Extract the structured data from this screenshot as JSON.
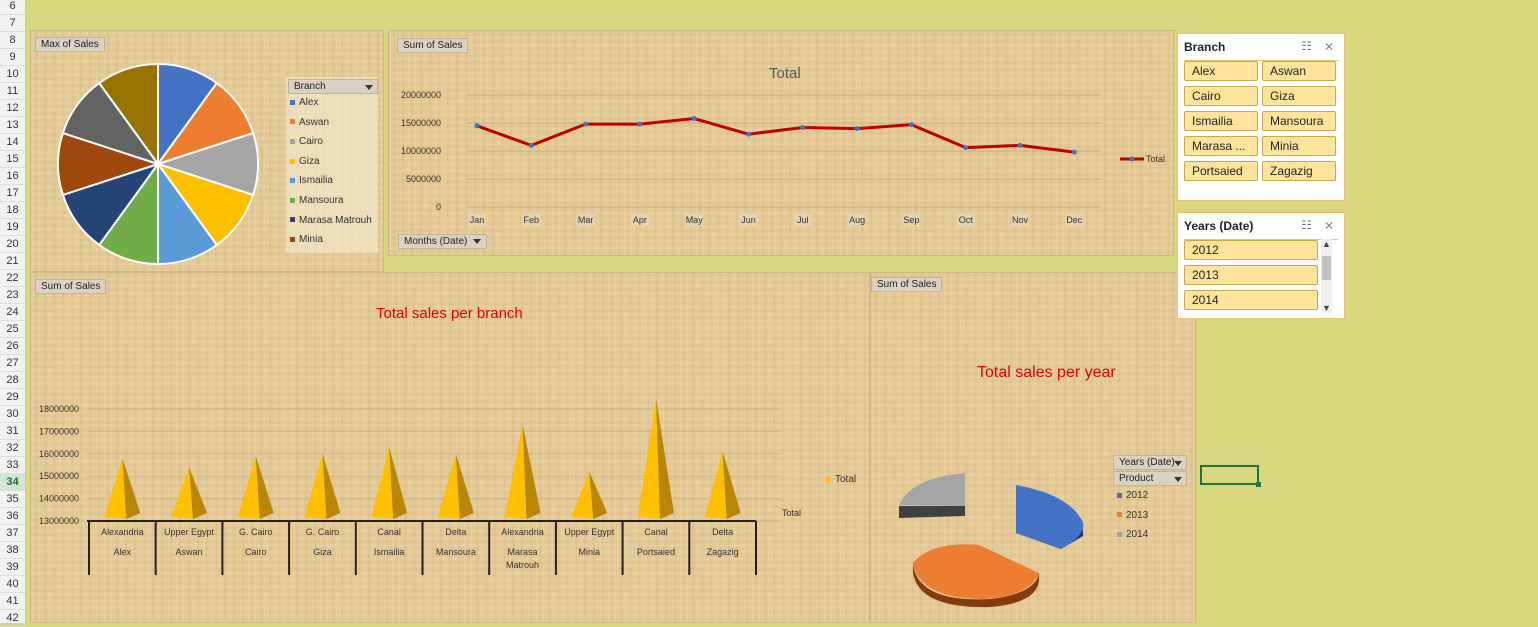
{
  "row_headers": [
    "6",
    "7",
    "8",
    "9",
    "10",
    "11",
    "12",
    "13",
    "14",
    "15",
    "16",
    "17",
    "18",
    "19",
    "20",
    "21",
    "22",
    "23",
    "24",
    "25",
    "26",
    "27",
    "28",
    "29",
    "30",
    "31",
    "32",
    "33",
    "34",
    "35",
    "36",
    "37",
    "38",
    "39",
    "40",
    "41",
    "42"
  ],
  "active_row": "34",
  "pie_panel": {
    "field_button": "Max of Sales",
    "legend_header": "Branch",
    "legend_items": [
      {
        "label": "Alex",
        "color": "#4472c4"
      },
      {
        "label": "Aswan",
        "color": "#ed7d31"
      },
      {
        "label": "Cairo",
        "color": "#a5a5a5"
      },
      {
        "label": "Giza",
        "color": "#ffc000"
      },
      {
        "label": "Ismailia",
        "color": "#5b9bd5"
      },
      {
        "label": "Mansoura",
        "color": "#70ad47"
      },
      {
        "label": "Marasa Matrouh",
        "color": "#264478"
      },
      {
        "label": "Minia",
        "color": "#9e480e"
      }
    ]
  },
  "line_panel": {
    "field_button": "Sum of Sales",
    "title": "Total",
    "axis_button": "Months (Date)",
    "legend_label": "Total"
  },
  "cone_panel": {
    "field_button": "Sum of Sales",
    "title": "Total sales per branch",
    "legend_label": "Total",
    "axis_caption": "Total",
    "regions": [
      "Alexandria",
      "Upper Egypt",
      "G. Cairo",
      "G. Cairo",
      "Canal",
      "Delta",
      "Alexandria",
      "Upper Egypt",
      "Canal",
      "Delta"
    ],
    "branches": [
      "Alex",
      "Aswan",
      "Cairo",
      "Giza",
      "Ismailia",
      "Mansoura",
      "Marasa Matrouh",
      "Minia",
      "Portsaied",
      "Zagazig"
    ]
  },
  "pie3d_panel": {
    "field_button": "Sum of Sales",
    "title": "Total sales per year",
    "years_button": "Years (Date)",
    "product_button": "Product",
    "legend_items": [
      {
        "label": "2012",
        "color": "#4472c4"
      },
      {
        "label": "2013",
        "color": "#ed7d31"
      },
      {
        "label": "2014",
        "color": "#a5a5a5"
      }
    ]
  },
  "slicer_branch": {
    "title": "Branch",
    "items": [
      "Alex",
      "Aswan",
      "Cairo",
      "Giza",
      "Ismailia",
      "Mansoura",
      "Marasa ...",
      "Minia",
      "Portsaied",
      "Zagazig"
    ]
  },
  "slicer_years": {
    "title": "Years (Date)",
    "items": [
      "2012",
      "2013",
      "2014"
    ]
  },
  "chart_data": [
    {
      "type": "pie",
      "categories": [
        "Alex",
        "Aswan",
        "Cairo",
        "Giza",
        "Ismailia",
        "Mansoura",
        "Marasa Matrouh",
        "Minia",
        "Portsaied",
        "Zagazig"
      ],
      "values": [
        10,
        10,
        10,
        10,
        10,
        10,
        10,
        10,
        10,
        10
      ],
      "colors": [
        "#4472c4",
        "#ed7d31",
        "#a5a5a5",
        "#ffc000",
        "#5b9bd5",
        "#70ad47",
        "#264478",
        "#9e480e",
        "#636363",
        "#997300"
      ]
    },
    {
      "type": "line",
      "title": "Total",
      "categories": [
        "Jan",
        "Feb",
        "Mar",
        "Apr",
        "May",
        "Jun",
        "Jul",
        "Aug",
        "Sep",
        "Oct",
        "Nov",
        "Dec"
      ],
      "series": [
        {
          "name": "Total",
          "values": [
            14500000,
            11000000,
            14800000,
            14800000,
            15800000,
            13000000,
            14200000,
            14000000,
            14700000,
            10600000,
            11000000,
            9800000
          ]
        }
      ],
      "yticks": [
        "0",
        "5000000",
        "10000000",
        "15000000",
        "20000000"
      ],
      "ylim": [
        0,
        20000000
      ]
    },
    {
      "type": "bar",
      "title": "Total sales per branch",
      "categories": [
        "Alex",
        "Aswan",
        "Cairo",
        "Giza",
        "Ismailia",
        "Mansoura",
        "Marasa Matrouh",
        "Minia",
        "Portsaied",
        "Zagazig"
      ],
      "series": [
        {
          "name": "Total",
          "values": [
            15800000,
            15400000,
            15900000,
            16000000,
            16300000,
            16000000,
            17300000,
            15200000,
            18500000,
            16100000
          ]
        }
      ],
      "yticks": [
        "13000000",
        "14000000",
        "15000000",
        "16000000",
        "17000000",
        "18000000"
      ],
      "ylim": [
        13000000,
        18500000
      ]
    },
    {
      "type": "pie",
      "title": "Total sales per year",
      "categories": [
        "2012",
        "2013",
        "2014"
      ],
      "values": [
        33.3,
        33.3,
        33.4
      ],
      "colors": [
        "#4472c4",
        "#ed7d31",
        "#a5a5a5"
      ]
    }
  ]
}
